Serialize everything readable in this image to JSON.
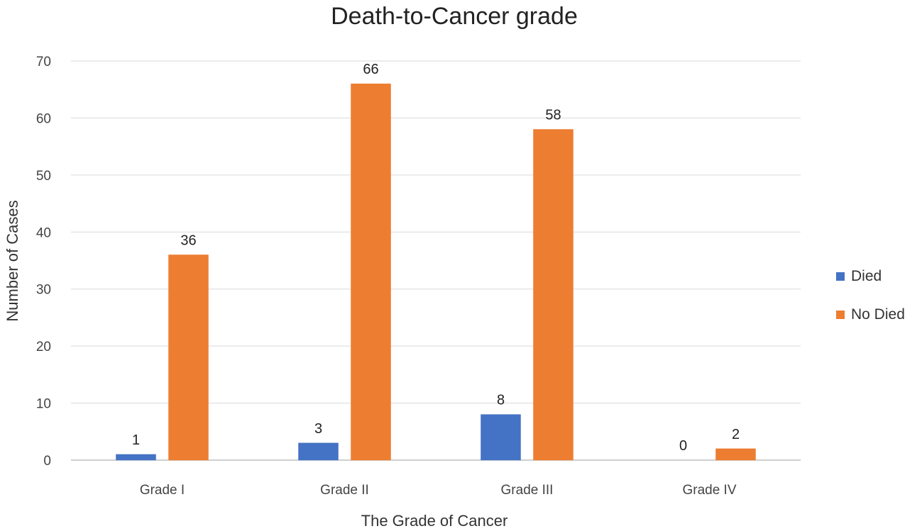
{
  "chart_data": {
    "type": "bar",
    "title": "Death-to-Cancer grade",
    "xlabel": "The Grade of Cancer",
    "ylabel": "Number  of Cases",
    "categories": [
      "Grade I",
      "Grade II",
      "Grade III",
      "Grade IV"
    ],
    "series": [
      {
        "name": "Died",
        "values": [
          1,
          3,
          8,
          0
        ],
        "color": "#4472C4"
      },
      {
        "name": "No Died",
        "values": [
          36,
          66,
          58,
          2
        ],
        "color": "#ED7D31"
      }
    ],
    "ylim": [
      0,
      70
    ],
    "yticks": [
      0,
      10,
      20,
      30,
      40,
      50,
      60,
      70
    ],
    "grid": true,
    "legend": "right",
    "data_labels": true
  }
}
